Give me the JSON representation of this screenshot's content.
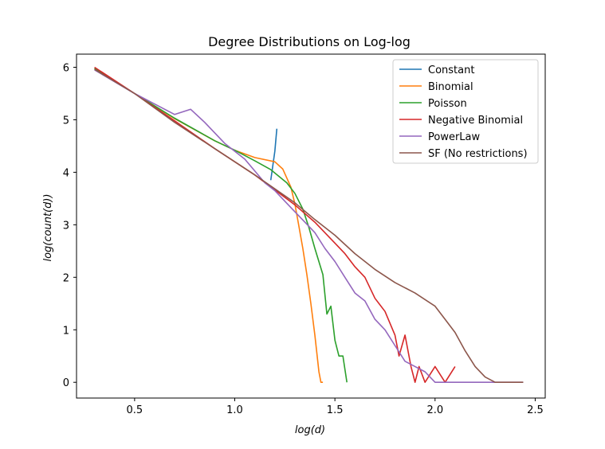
{
  "chart_data": {
    "type": "line",
    "title": "Degree Distributions on Log-log",
    "xlabel": "log(d)",
    "ylabel": "log(count(d))",
    "xlim": [
      0.21,
      2.55
    ],
    "ylim": [
      -0.3,
      6.25
    ],
    "xticks": [
      0.5,
      1.0,
      1.5,
      2.0,
      2.5
    ],
    "xtick_labels": [
      "0.5",
      "1.0",
      "1.5",
      "2.0",
      "2.5"
    ],
    "yticks": [
      0,
      1,
      2,
      3,
      4,
      5,
      6
    ],
    "ytick_labels": [
      "0",
      "1",
      "2",
      "3",
      "4",
      "5",
      "6"
    ],
    "grid": false,
    "legend_position": "top-right",
    "series": [
      {
        "name": "Constant",
        "color": "#1f77b4",
        "x": [
          1.18,
          1.2,
          1.21
        ],
        "y": [
          3.85,
          4.4,
          4.83
        ]
      },
      {
        "name": "Binomial",
        "color": "#ff7f0e",
        "x": [
          0.3,
          0.5,
          0.7,
          0.9,
          1.0,
          1.1,
          1.2,
          1.24,
          1.28,
          1.3,
          1.32,
          1.34,
          1.36,
          1.38,
          1.4,
          1.42,
          1.43,
          1.44
        ],
        "y": [
          5.98,
          5.5,
          5.02,
          4.6,
          4.42,
          4.28,
          4.2,
          4.06,
          3.72,
          3.4,
          2.98,
          2.55,
          2.05,
          1.5,
          0.9,
          0.2,
          0.0,
          0.0
        ]
      },
      {
        "name": "Poisson",
        "color": "#2ca02c",
        "x": [
          0.3,
          0.5,
          0.7,
          0.9,
          1.0,
          1.1,
          1.18,
          1.26,
          1.3,
          1.34,
          1.37,
          1.4,
          1.44,
          1.46,
          1.48,
          1.5,
          1.52,
          1.54,
          1.56
        ],
        "y": [
          5.98,
          5.5,
          5.03,
          4.6,
          4.42,
          4.22,
          4.05,
          3.8,
          3.6,
          3.3,
          2.95,
          2.55,
          2.05,
          1.3,
          1.45,
          0.8,
          0.5,
          0.5,
          0.0
        ]
      },
      {
        "name": "Negative Binomial",
        "color": "#d62728",
        "x": [
          0.3,
          0.5,
          0.7,
          0.9,
          1.1,
          1.3,
          1.4,
          1.5,
          1.55,
          1.6,
          1.65,
          1.7,
          1.75,
          1.8,
          1.82,
          1.85,
          1.88,
          1.9,
          1.92,
          1.95,
          2.0,
          2.05,
          2.1
        ],
        "y": [
          6.0,
          5.5,
          4.98,
          4.45,
          3.95,
          3.38,
          3.05,
          2.65,
          2.45,
          2.2,
          2.0,
          1.6,
          1.35,
          0.9,
          0.5,
          0.9,
          0.3,
          0.0,
          0.3,
          0.0,
          0.3,
          0.0,
          0.3
        ]
      },
      {
        "name": "PowerLaw",
        "color": "#9467bd",
        "x": [
          0.3,
          0.5,
          0.7,
          0.78,
          0.85,
          0.95,
          1.05,
          1.15,
          1.2,
          1.25,
          1.3,
          1.35,
          1.4,
          1.45,
          1.5,
          1.55,
          1.6,
          1.65,
          1.7,
          1.75,
          1.8,
          1.85,
          1.9,
          1.95,
          2.0,
          2.05,
          2.1,
          2.2,
          2.3,
          2.44
        ],
        "y": [
          5.95,
          5.5,
          5.1,
          5.2,
          4.95,
          4.55,
          4.25,
          3.8,
          3.65,
          3.45,
          3.25,
          3.05,
          2.85,
          2.55,
          2.3,
          2.0,
          1.7,
          1.55,
          1.2,
          1.0,
          0.7,
          0.4,
          0.3,
          0.2,
          0.0,
          0.0,
          0.0,
          0.0,
          0.0,
          0.0
        ]
      },
      {
        "name": "SF (No restrictions)",
        "color": "#8c564b",
        "x": [
          0.3,
          0.5,
          0.7,
          0.9,
          1.1,
          1.3,
          1.4,
          1.5,
          1.6,
          1.7,
          1.8,
          1.9,
          2.0,
          2.05,
          2.1,
          2.15,
          2.2,
          2.25,
          2.3,
          2.44
        ],
        "y": [
          5.96,
          5.5,
          4.95,
          4.45,
          3.95,
          3.42,
          3.1,
          2.8,
          2.45,
          2.15,
          1.9,
          1.7,
          1.45,
          1.2,
          0.95,
          0.6,
          0.3,
          0.1,
          0.0,
          0.0
        ]
      }
    ]
  }
}
